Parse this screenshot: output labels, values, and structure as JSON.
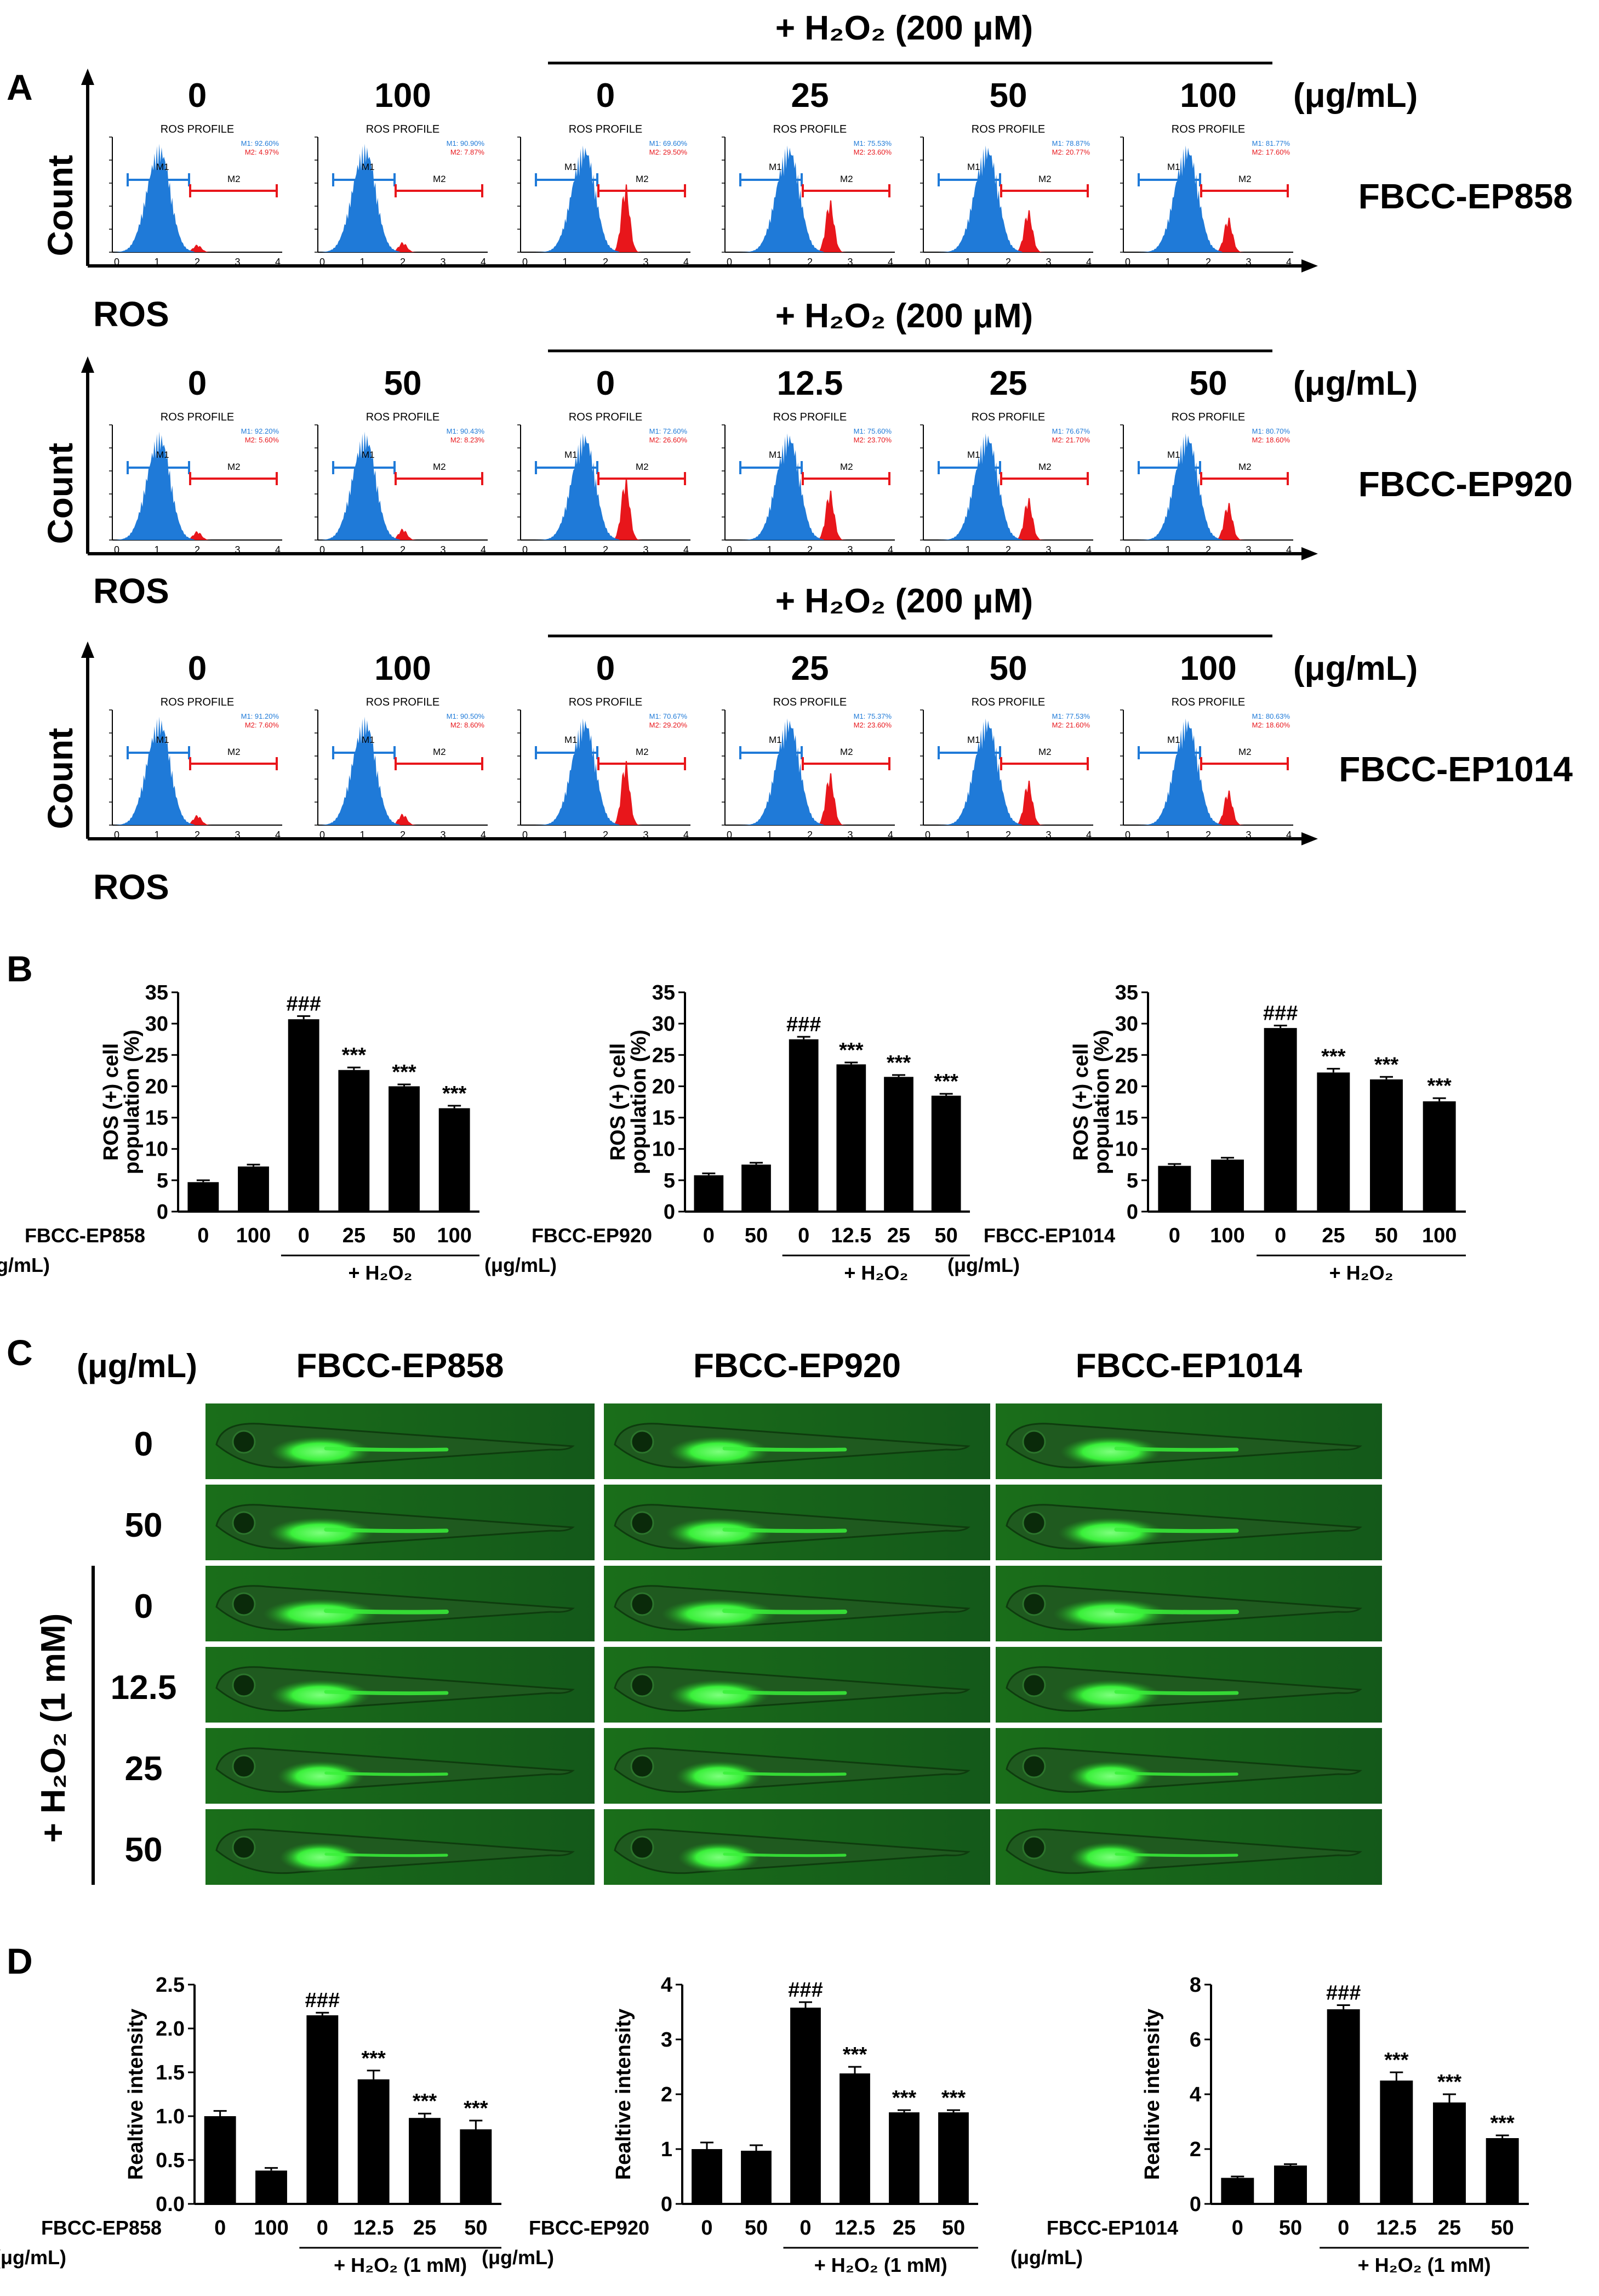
{
  "panel_labels": [
    "A",
    "B",
    "C",
    "D"
  ],
  "panelA": {
    "unit": "(μg/mL)",
    "h2o2_label": "+ H₂O₂ (200 μM)",
    "mini_title": "ROS PROFILE",
    "gate1": "M1",
    "gate2": "M2",
    "x_ticks": [
      "0",
      "1",
      "2",
      "3",
      "4"
    ],
    "y_axis": "Count",
    "x_axis": "ROS",
    "rows": [
      {
        "name": "FBCC-EP858",
        "doses": [
          "0",
          "100",
          "0",
          "25",
          "50",
          "100"
        ],
        "m1": [
          "M1: 92.60%",
          "M1: 90.90%",
          "M1: 69.60%",
          "M1: 75.53%",
          "M1: 78.87%",
          "M1: 81.77%"
        ],
        "m2": [
          "M2: 4.97%",
          "M2: 7.87%",
          "M2: 29.50%",
          "M2: 23.60%",
          "M2: 20.77%",
          "M2: 17.60%"
        ]
      },
      {
        "name": "FBCC-EP920",
        "doses": [
          "0",
          "50",
          "0",
          "12.5",
          "25",
          "50"
        ],
        "m1": [
          "M1: 92.20%",
          "M1: 90.43%",
          "M1: 72.60%",
          "M1: 75.60%",
          "M1: 76.67%",
          "M1: 80.70%"
        ],
        "m2": [
          "M2: 5.60%",
          "M2: 8.23%",
          "M2: 26.60%",
          "M2: 23.70%",
          "M2: 21.70%",
          "M2: 18.60%"
        ]
      },
      {
        "name": "FBCC-EP1014",
        "doses": [
          "0",
          "100",
          "0",
          "25",
          "50",
          "100"
        ],
        "m1": [
          "M1: 91.20%",
          "M1: 90.50%",
          "M1: 70.67%",
          "M1: 75.37%",
          "M1: 77.53%",
          "M1: 80.63%"
        ],
        "m2": [
          "M2: 7.60%",
          "M2: 8.60%",
          "M2: 29.20%",
          "M2: 23.60%",
          "M2: 21.60%",
          "M2: 18.60%"
        ]
      }
    ]
  },
  "panelC": {
    "unit": "(μg/mL)",
    "columns": [
      "FBCC-EP858",
      "FBCC-EP920",
      "FBCC-EP1014"
    ],
    "doses": [
      "0",
      "50",
      "0",
      "12.5",
      "25",
      "50"
    ],
    "h2o2_label": "+ H₂O₂ (1 mM)"
  },
  "chart_data": [
    {
      "type": "bar",
      "panel": "B",
      "xlabel_prefix": "FBCC-EP858",
      "xlabel_unit": "(μg/mL)",
      "categories": [
        "0",
        "100",
        "0",
        "25",
        "50",
        "100"
      ],
      "values": [
        4.7,
        7.2,
        30.7,
        22.6,
        20.0,
        16.5
      ],
      "errors": [
        0.3,
        0.3,
        0.5,
        0.4,
        0.3,
        0.4
      ],
      "annotations": [
        "",
        "",
        "###",
        "***",
        "***",
        "***"
      ],
      "ylabel_line1": "ROS (+) cell",
      "ylabel_line2": "population (%)",
      "ylim": [
        0,
        35
      ],
      "yticks": [
        "0",
        "5",
        "10",
        "15",
        "20",
        "25",
        "30",
        "35"
      ],
      "group_label": "+ H₂O₂",
      "group_from": 2
    },
    {
      "type": "bar",
      "panel": "B",
      "xlabel_prefix": "FBCC-EP920",
      "xlabel_unit": "(μg/mL)",
      "categories": [
        "0",
        "50",
        "0",
        "12.5",
        "25",
        "50"
      ],
      "values": [
        5.8,
        7.5,
        27.5,
        23.5,
        21.5,
        18.5
      ],
      "errors": [
        0.3,
        0.3,
        0.4,
        0.3,
        0.3,
        0.3
      ],
      "annotations": [
        "",
        "",
        "###",
        "***",
        "***",
        "***"
      ],
      "ylabel_line1": "ROS (+) cell",
      "ylabel_line2": "population (%)",
      "ylim": [
        0,
        35
      ],
      "yticks": [
        "0",
        "5",
        "10",
        "15",
        "20",
        "25",
        "30",
        "35"
      ],
      "group_label": "+ H₂O₂",
      "group_from": 2
    },
    {
      "type": "bar",
      "panel": "B",
      "xlabel_prefix": "FBCC-EP1014",
      "xlabel_unit": "(μg/mL)",
      "categories": [
        "0",
        "100",
        "0",
        "25",
        "50",
        "100"
      ],
      "values": [
        7.3,
        8.3,
        29.3,
        22.2,
        21.1,
        17.6
      ],
      "errors": [
        0.3,
        0.3,
        0.4,
        0.6,
        0.4,
        0.5
      ],
      "annotations": [
        "",
        "",
        "###",
        "***",
        "***",
        "***"
      ],
      "ylabel_line1": "ROS (+) cell",
      "ylabel_line2": "population (%)",
      "ylim": [
        0,
        35
      ],
      "yticks": [
        "0",
        "5",
        "10",
        "15",
        "20",
        "25",
        "30",
        "35"
      ],
      "group_label": "+ H₂O₂",
      "group_from": 2
    },
    {
      "type": "bar",
      "panel": "D",
      "xlabel_prefix": "FBCC-EP858",
      "xlabel_unit": "(μg/mL)",
      "categories": [
        "0",
        "100",
        "0",
        "12.5",
        "25",
        "50"
      ],
      "values": [
        1.0,
        0.38,
        2.15,
        1.42,
        0.98,
        0.85
      ],
      "errors": [
        0.06,
        0.03,
        0.03,
        0.1,
        0.05,
        0.1
      ],
      "annotations": [
        "",
        "",
        "###",
        "***",
        "***",
        "***"
      ],
      "ylabel_line1": "Realtive intensity",
      "ylabel_line2": "",
      "ylim": [
        0,
        2.5
      ],
      "yticks": [
        "0.0",
        "0.5",
        "1.0",
        "1.5",
        "2.0",
        "2.5"
      ],
      "group_label": "+ H₂O₂ (1 mM)",
      "group_from": 2
    },
    {
      "type": "bar",
      "panel": "D",
      "xlabel_prefix": "FBCC-EP920",
      "xlabel_unit": "(μg/mL)",
      "categories": [
        "0",
        "50",
        "0",
        "12.5",
        "25",
        "50"
      ],
      "values": [
        1.0,
        0.97,
        3.58,
        2.38,
        1.67,
        1.67
      ],
      "errors": [
        0.12,
        0.1,
        0.1,
        0.12,
        0.04,
        0.04
      ],
      "annotations": [
        "",
        "",
        "###",
        "***",
        "***",
        "***"
      ],
      "ylabel_line1": "Realtive intensity",
      "ylabel_line2": "",
      "ylim": [
        0,
        4
      ],
      "yticks": [
        "0",
        "1",
        "2",
        "3",
        "4"
      ],
      "group_label": "+ H₂O₂ (1 mM)",
      "group_from": 2
    },
    {
      "type": "bar",
      "panel": "D",
      "xlabel_prefix": "FBCC-EP1014",
      "xlabel_unit": "(μg/mL)",
      "categories": [
        "0",
        "50",
        "0",
        "12.5",
        "25",
        "50"
      ],
      "values": [
        0.95,
        1.4,
        7.1,
        4.5,
        3.7,
        2.4
      ],
      "errors": [
        0.05,
        0.05,
        0.15,
        0.3,
        0.3,
        0.1
      ],
      "annotations": [
        "",
        "",
        "###",
        "***",
        "***",
        "***"
      ],
      "ylabel_line1": "Realtive intensity",
      "ylabel_line2": "",
      "ylim": [
        0,
        8
      ],
      "yticks": [
        "0",
        "2",
        "4",
        "6",
        "8"
      ],
      "group_label": "+ H₂O₂ (1 mM)",
      "group_from": 2
    }
  ],
  "colors": {
    "m1": "#1f7ad8",
    "m2": "#e8161b",
    "fluor_bg": "#176a17",
    "fish": "#39f039",
    "bar": "#000000"
  }
}
